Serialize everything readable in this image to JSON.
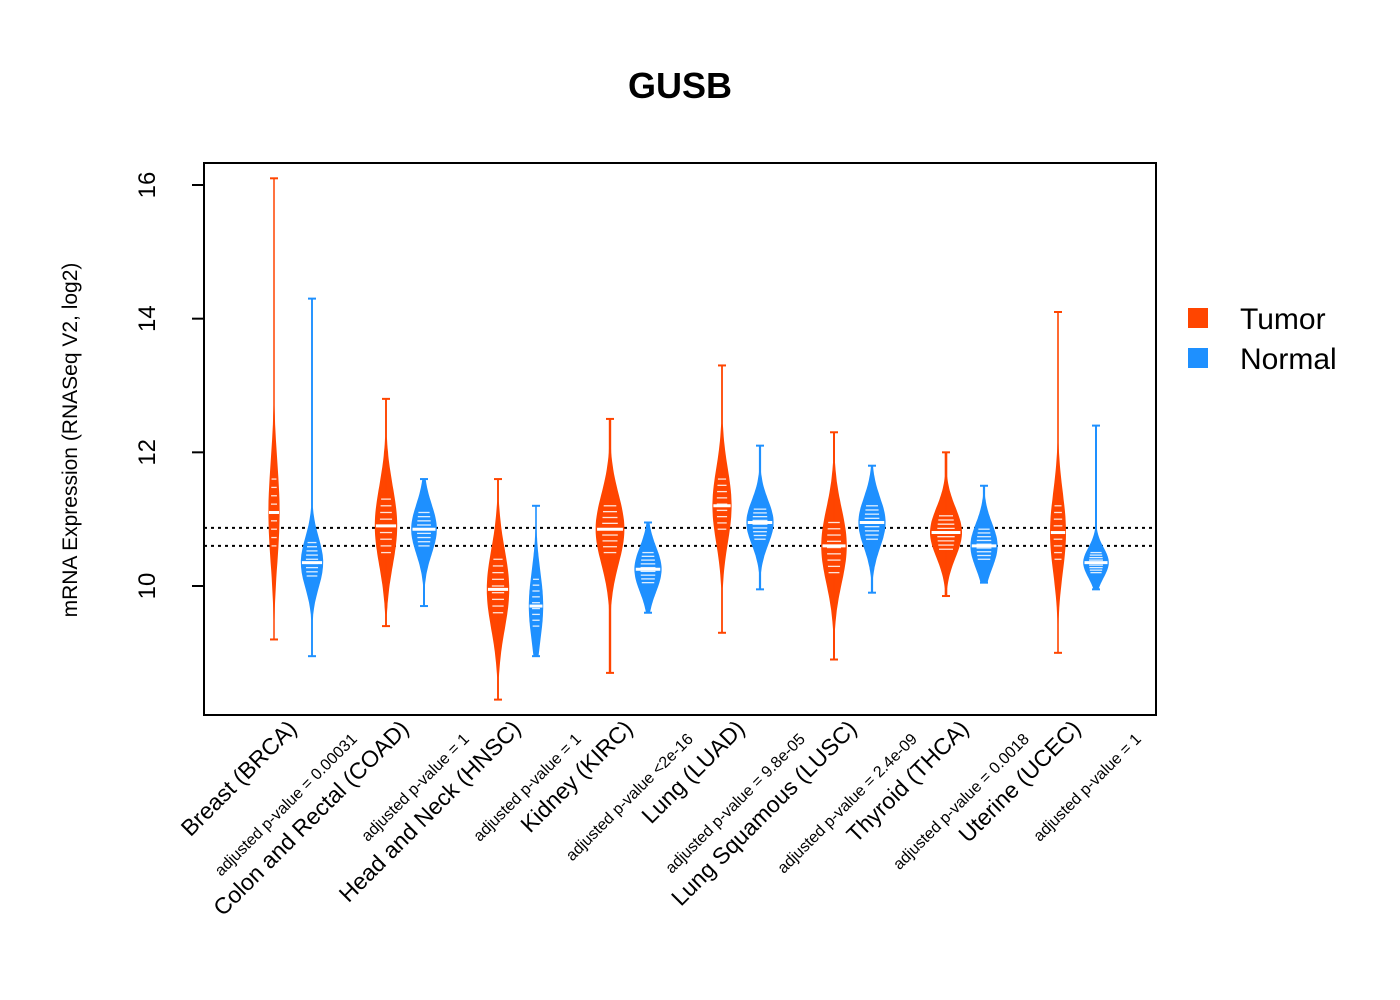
{
  "chart_data": {
    "type": "violin",
    "title": "GUSB",
    "xlabel": "",
    "ylabel": "mRNA Expression (RNASeq V2, log2)",
    "ylim": [
      8.1,
      16.5
    ],
    "yticks": [
      10,
      12,
      14,
      16
    ],
    "reference_lines": [
      10.6,
      10.87
    ],
    "legend": {
      "position": "right",
      "entries": [
        {
          "name": "Tumor",
          "color": "#FF4500"
        },
        {
          "name": "Normal",
          "color": "#1E90FF"
        }
      ]
    },
    "categories": [
      {
        "label": "Breast (BRCA)",
        "pvalue": "adjusted p-value = 0.00031"
      },
      {
        "label": "Colon and Rectal (COAD)",
        "pvalue": "adjusted p-value = 1"
      },
      {
        "label": "Head and Neck (HNSC)",
        "pvalue": "adjusted p-value = 1"
      },
      {
        "label": "Kidney (KIRC)",
        "pvalue": "adjusted p-value <2e-16"
      },
      {
        "label": "Lung (LUAD)",
        "pvalue": "adjusted p-value = 9.8e-05"
      },
      {
        "label": "Lung Squamous (LUSC)",
        "pvalue": "adjusted p-value = 2.4e-09"
      },
      {
        "label": "Thyroid (THCA)",
        "pvalue": "adjusted p-value = 0.0018"
      },
      {
        "label": "Uterine (UCEC)",
        "pvalue": "adjusted p-value = 1"
      }
    ],
    "series": [
      {
        "name": "Tumor",
        "color": "#FF4500",
        "groups": [
          {
            "median": 11.1,
            "q1": 10.6,
            "q3": 11.6,
            "min": 9.2,
            "max": 16.1,
            "widthScale": 0.35
          },
          {
            "median": 10.9,
            "q1": 10.5,
            "q3": 11.3,
            "min": 9.4,
            "max": 12.8,
            "widthScale": 0.7
          },
          {
            "median": 9.95,
            "q1": 9.6,
            "q3": 10.4,
            "min": 8.3,
            "max": 11.6,
            "widthScale": 0.7
          },
          {
            "median": 10.85,
            "q1": 10.5,
            "q3": 11.2,
            "min": 8.7,
            "max": 12.5,
            "widthScale": 0.9
          },
          {
            "median": 11.2,
            "q1": 10.85,
            "q3": 11.6,
            "min": 9.3,
            "max": 13.3,
            "widthScale": 0.6
          },
          {
            "median": 10.6,
            "q1": 10.2,
            "q3": 10.95,
            "min": 8.9,
            "max": 12.3,
            "widthScale": 0.8
          },
          {
            "median": 10.8,
            "q1": 10.55,
            "q3": 11.05,
            "min": 9.85,
            "max": 12.0,
            "widthScale": 1.0
          },
          {
            "median": 10.8,
            "q1": 10.4,
            "q3": 11.2,
            "min": 9.0,
            "max": 14.1,
            "widthScale": 0.5
          }
        ]
      },
      {
        "name": "Normal",
        "color": "#1E90FF",
        "groups": [
          {
            "median": 10.35,
            "q1": 10.15,
            "q3": 10.65,
            "min": 8.95,
            "max": 14.3,
            "widthScale": 0.7
          },
          {
            "median": 10.85,
            "q1": 10.6,
            "q3": 11.1,
            "min": 9.7,
            "max": 11.6,
            "widthScale": 0.8
          },
          {
            "median": 9.7,
            "q1": 9.4,
            "q3": 10.1,
            "min": 8.95,
            "max": 11.2,
            "widthScale": 0.45
          },
          {
            "median": 10.25,
            "q1": 10.05,
            "q3": 10.5,
            "min": 9.6,
            "max": 10.95,
            "widthScale": 0.85
          },
          {
            "median": 10.95,
            "q1": 10.7,
            "q3": 11.15,
            "min": 9.95,
            "max": 12.1,
            "widthScale": 0.85
          },
          {
            "median": 10.95,
            "q1": 10.7,
            "q3": 11.2,
            "min": 9.9,
            "max": 11.8,
            "widthScale": 0.85
          },
          {
            "median": 10.6,
            "q1": 10.4,
            "q3": 10.85,
            "min": 10.05,
            "max": 11.5,
            "widthScale": 0.85
          },
          {
            "median": 10.35,
            "q1": 10.2,
            "q3": 10.5,
            "min": 9.95,
            "max": 12.4,
            "widthScale": 0.8
          }
        ]
      }
    ]
  }
}
